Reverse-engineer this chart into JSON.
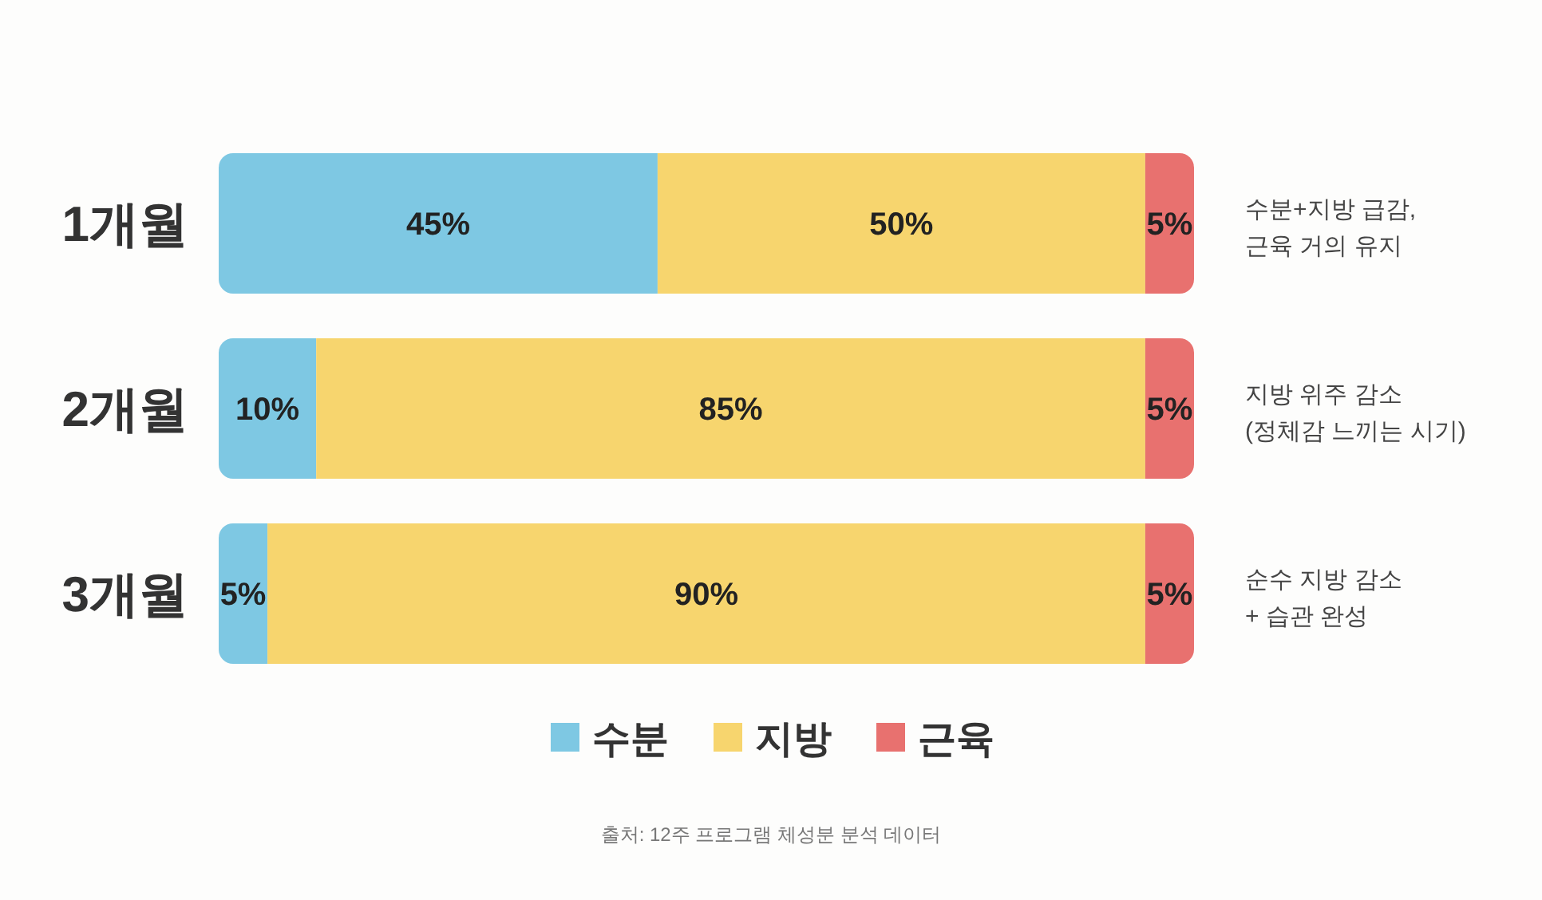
{
  "chart_data": {
    "type": "bar",
    "orientation": "horizontal",
    "stacked": true,
    "categories": [
      "1개월",
      "2개월",
      "3개월"
    ],
    "series": [
      {
        "name": "수분",
        "color": "#7ec8e3",
        "values": [
          45,
          10,
          5
        ],
        "value_labels": [
          "45%",
          "10%",
          "5%"
        ]
      },
      {
        "name": "지방",
        "color": "#f7d56e",
        "values": [
          50,
          85,
          90
        ],
        "value_labels": [
          "50%",
          "85%",
          "90%"
        ]
      },
      {
        "name": "근육",
        "color": "#e8716f",
        "values": [
          5,
          5,
          5
        ],
        "value_labels": [
          "5%",
          "5%",
          "5%"
        ]
      }
    ],
    "legend": "bottom",
    "annotations": [
      "수분+지방 급감,\n근육 거의 유지",
      "지방 위주 감소\n(정체감 느끼는 시기)",
      "순수 지방 감소\n+ 습관 완성",
      "출처: 12주 프로그램 체성분 분석 데이터"
    ]
  }
}
